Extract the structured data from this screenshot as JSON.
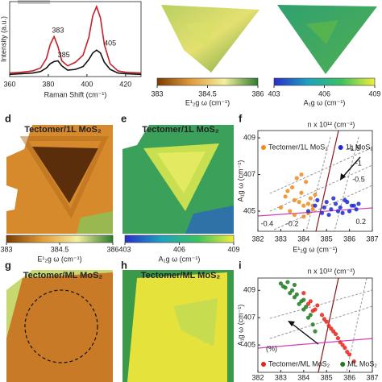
{
  "chart_data": [
    {
      "type": "line",
      "xlabel": "Raman Shift (cm⁻¹)",
      "ylabel": "Intensity (a.u.)",
      "xlim": [
        360,
        428
      ],
      "xticks": [
        360,
        380,
        400,
        420
      ],
      "ylim": [
        0,
        1.05
      ],
      "x": [
        360,
        366,
        372,
        376,
        379,
        381,
        383,
        385,
        387,
        390,
        394,
        398,
        401,
        403,
        405,
        407,
        409,
        412,
        416,
        420,
        428
      ],
      "series": [
        {
          "color": "#c8202a",
          "values": [
            0.05,
            0.06,
            0.08,
            0.12,
            0.25,
            0.45,
            0.56,
            0.42,
            0.22,
            0.15,
            0.2,
            0.3,
            0.55,
            0.85,
            0.98,
            0.82,
            0.45,
            0.18,
            0.08,
            0.06,
            0.05
          ]
        },
        {
          "color": "#111111",
          "values": [
            0.03,
            0.04,
            0.05,
            0.07,
            0.12,
            0.18,
            0.21,
            0.22,
            0.15,
            0.09,
            0.1,
            0.14,
            0.24,
            0.33,
            0.37,
            0.33,
            0.2,
            0.1,
            0.05,
            0.04,
            0.03
          ]
        }
      ],
      "annotations": [
        {
          "text": "383",
          "x": 385,
          "y": 0.64,
          "color": "#c8202a"
        },
        {
          "text": "385",
          "x": 388,
          "y": 0.3,
          "color": "#111111"
        },
        {
          "text": "405",
          "x": 412,
          "y": 0.46,
          "color": "#111111"
        }
      ]
    },
    {
      "type": "scatter",
      "label": "f",
      "title": "n x 10¹² (cm⁻²)",
      "xlabel": "E¹₂g ω (cm⁻¹)",
      "ylabel": "A₁g ω (cm⁻¹)",
      "xlim": [
        382,
        387
      ],
      "xticks": [
        382,
        383,
        384,
        385,
        386,
        387
      ],
      "ylim": [
        403.9,
        409.4
      ],
      "yticks": [
        405,
        407,
        409
      ],
      "legend": "top",
      "series": [
        {
          "name": "Tectomer/1L MoS₂",
          "color": "#f08a1c",
          "x": [
            383.0,
            383.2,
            383.4,
            383.5,
            383.6,
            383.8,
            383.9,
            384.0,
            384.1,
            384.2,
            384.3,
            384.4,
            384.5,
            383.3,
            383.7,
            384.0,
            384.2,
            383.6,
            383.9,
            384.4
          ],
          "y": [
            405.2,
            405.8,
            405.0,
            406.3,
            404.8,
            405.5,
            406.0,
            405.3,
            406.6,
            404.9,
            405.7,
            405.1,
            405.9,
            406.1,
            406.8,
            404.7,
            405.4,
            405.6,
            407.0,
            405.3
          ]
        },
        {
          "name": "1L MoS₂",
          "color": "#1c2ad0",
          "x": [
            384.2,
            384.5,
            384.8,
            385.0,
            385.2,
            385.4,
            385.6,
            385.8,
            386.0,
            386.2,
            386.4,
            384.6,
            385.1,
            385.5,
            385.9,
            386.3,
            384.9,
            385.3,
            385.7,
            386.1
          ],
          "y": [
            405.0,
            405.3,
            404.9,
            405.5,
            405.1,
            405.4,
            405.2,
            405.6,
            405.0,
            405.3,
            405.4,
            405.6,
            404.8,
            405.0,
            405.5,
            405.1,
            405.2,
            405.7,
            404.9,
            405.3
          ]
        }
      ],
      "annotations": [
        {
          "text": "-1.5",
          "x": 386.2,
          "y": 408.4,
          "color": "#8b1a1a"
        },
        {
          "text": "-1",
          "x": 386.4,
          "y": 407.6,
          "color": "#8b1a1a"
        },
        {
          "text": "-0.5",
          "x": 386.4,
          "y": 406.7,
          "color": "#8b1a1a"
        },
        {
          "text": "0.2",
          "x": 386.5,
          "y": 404.4,
          "color": "#b0308a"
        },
        {
          "text": "-0.2",
          "x": 383.5,
          "y": 404.3,
          "color": "#b0308a"
        },
        {
          "text": "-0.4",
          "x": 382.4,
          "y": 404.3,
          "color": "#b0308a"
        }
      ]
    },
    {
      "type": "scatter",
      "label": "i",
      "title": "n x 10¹² (cm⁻²)",
      "xlabel": "E¹₂g ω (cm⁻¹)",
      "ylabel": "A₁g ω (cm⁻¹)",
      "xlim": [
        382,
        387
      ],
      "xticks": [
        382,
        383,
        384,
        385,
        386,
        387
      ],
      "ylim": [
        403.0,
        409.9
      ],
      "yticks": [
        405,
        407,
        409
      ],
      "legend": "bottom",
      "series": [
        {
          "name": "Tectomer/ML MoS₂",
          "color": "#e8231c",
          "x": [
            384.0,
            384.3,
            384.5,
            384.8,
            385.0,
            385.2,
            385.4,
            385.6,
            385.8,
            386.0,
            386.2,
            384.2,
            384.6,
            385.1,
            385.5,
            385.9,
            384.4,
            384.9,
            385.3,
            385.7
          ],
          "y": [
            408.8,
            408.2,
            407.6,
            407.2,
            406.7,
            406.2,
            405.8,
            405.2,
            404.8,
            404.3,
            403.8,
            408.0,
            407.9,
            406.4,
            405.5,
            404.5,
            407.5,
            406.9,
            406.0,
            405.0
          ]
        },
        {
          "name": "ML MoS₂",
          "color": "#1f7a20",
          "x": [
            383.0,
            383.2,
            383.4,
            383.6,
            383.8,
            384.0,
            384.2,
            384.4,
            383.3,
            383.5,
            383.7,
            383.9,
            384.1,
            384.3,
            383.1,
            383.6,
            384.0,
            384.5
          ],
          "y": [
            409.5,
            409.2,
            408.8,
            408.5,
            408.0,
            407.6,
            407.0,
            406.5,
            409.6,
            409.0,
            408.7,
            408.2,
            407.8,
            407.2,
            409.3,
            409.4,
            408.3,
            406.0
          ]
        }
      ],
      "annotations": [
        {
          "text": "(%)",
          "x": 382.6,
          "y": 404.7,
          "color": "#b0308a"
        }
      ]
    }
  ],
  "maps": [
    {
      "colorbar": {
        "lim": [
          383,
          386
        ],
        "ticks": [
          383,
          384.5,
          386
        ],
        "label": "E¹₂g ω (cm⁻¹)",
        "colors": [
          "#7a3c00",
          "#e09a3a",
          "#f4f0a0",
          "#2e7d2e"
        ]
      }
    },
    {
      "colorbar": {
        "lim": [
          403,
          409
        ],
        "ticks": [
          403,
          406,
          409
        ],
        "label": "A₁g ω (cm⁻¹)",
        "colors": [
          "#2a2ec8",
          "#1ea0c0",
          "#3cc060",
          "#f2ee3a"
        ]
      }
    },
    {
      "label": "d",
      "title": "Tectomer/1L MoS₂",
      "colorbar": {
        "lim": [
          383,
          386
        ],
        "ticks": [
          383,
          384.5,
          386
        ],
        "label": "E¹₂g ω (cm⁻¹)",
        "colors": [
          "#7a3c00",
          "#e09a3a",
          "#f4f0a0",
          "#2e7d2e"
        ]
      }
    },
    {
      "label": "e",
      "title": "Tectomer/1L MoS₂",
      "colorbar": {
        "lim": [
          403,
          409
        ],
        "ticks": [
          403,
          406,
          409
        ],
        "label": "A₁g ω (cm⁻¹)",
        "colors": [
          "#2a2ec8",
          "#1ea0c0",
          "#3cc060",
          "#f2ee3a"
        ]
      }
    },
    {
      "label": "g",
      "title": "Tectomer/ML MoS₂"
    },
    {
      "label": "h",
      "title": "Tectomer/ML MoS₂"
    }
  ]
}
